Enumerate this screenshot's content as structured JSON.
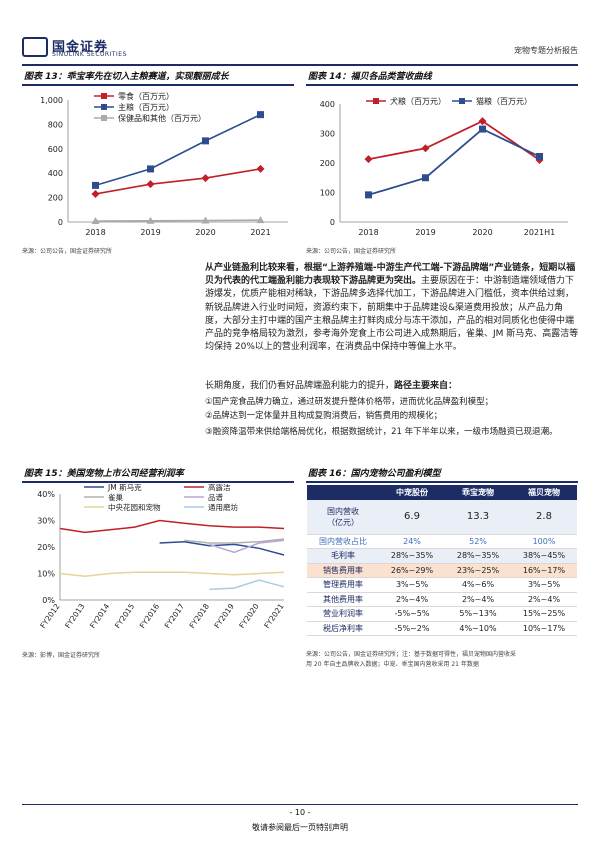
{
  "header": {
    "logo_cn": "国金证券",
    "logo_en": "SINOLINK SECURITIES",
    "report_type": "宠物专题分析报告"
  },
  "fig13": {
    "title": "图表 13：乖宝率先在切入主粮赛道，实现靓丽成长",
    "source": "来源：公司公告，国金证券研究所",
    "chart_data": {
      "type": "line",
      "x": [
        "2018",
        "2019",
        "2020",
        "2021"
      ],
      "ylim": [
        0,
        1000
      ],
      "yticks": [
        "0",
        "200",
        "400",
        "600",
        "800",
        "1,000"
      ],
      "series": [
        {
          "name": "零食（百万元）",
          "values": [
            230,
            310,
            360,
            435
          ],
          "color": "#c0202a"
        },
        {
          "name": "主粮（百万元）",
          "values": [
            300,
            435,
            665,
            880
          ],
          "color": "#2e4d8f"
        },
        {
          "name": "保健品和其他（百万元）",
          "values": [
            8,
            10,
            12,
            15
          ],
          "color": "#aaaaaa"
        }
      ]
    }
  },
  "fig14": {
    "title": "图表 14：福贝各品类营收曲线",
    "source": "来源：公司公告，国金证券研究所",
    "chart_data": {
      "type": "line",
      "x": [
        "2018",
        "2019",
        "2020",
        "2021H1"
      ],
      "ylim": [
        0,
        400
      ],
      "yticks": [
        "0",
        "100",
        "200",
        "300",
        "400"
      ],
      "series": [
        {
          "name": "犬粮（百万元）",
          "values": [
            213,
            250,
            342,
            210
          ],
          "color": "#c0202a"
        },
        {
          "name": "猫粮（百万元）",
          "values": [
            92,
            150,
            315,
            222
          ],
          "color": "#2e4d8f"
        }
      ]
    }
  },
  "text": {
    "p1_bold": "从产业链盈利比较来看，根据“上游养殖端-中游生产代工端-下游品牌端”产业链条，短期以福贝为代表的代工端盈利能力表现较下游品牌更为突出。",
    "p1_rest": "主要原因在于：中游制造端领域借力下游爆发，优质产能相对稀缺，下游品牌多选择代加工，下游品牌进入门槛低，资本供给过剩，新锐品牌进入行业时间短，资源约束下，前期集中于品牌建设&渠道费用投放；从产品力角度，大部分主打中端的国产主粮品牌主打鲜肉成分与冻干添加，产品的相对同质化也使得中端产品的竞争格局较为激烈，参考海外宠食上市公司进入成熟期后，雀巢、JM 斯马克、高露洁等均保持 20%以上的营业利润率，在消费品中保持中等偏上水平。",
    "p2_normal": "长期角度，我们仍看好品牌端盈利能力的提升，",
    "p2_bold": "路径主要来自：",
    "b1": "①国产宠食品牌力确立，通过研发提升整体价格带，进而优化品牌盈利模型；",
    "b2": "②品牌达到一定体量并且构成复购消费后，销售费用的规模化；",
    "b3": "③融资降温带来供给端格局优化，根据数据统计，21 年下半年以来，一级市场融资已现退潮。"
  },
  "fig15": {
    "title": "图表 15：美国宠物上市公司经营利润率",
    "source": "来源：彭博，国金证券研究所",
    "chart_data": {
      "type": "line",
      "x": [
        "FY2012",
        "FY2013",
        "FY2014",
        "FY2015",
        "FY2016",
        "FY2017",
        "FY2018",
        "FY2019",
        "FY2020",
        "FY2021"
      ],
      "ylim": [
        0,
        40
      ],
      "yticks": [
        "0%",
        "10%",
        "20%",
        "30%",
        "40%"
      ],
      "series": [
        {
          "name": "JM 斯马克",
          "values": [
            null,
            null,
            null,
            null,
            21.5,
            22,
            20.5,
            21,
            19.5,
            17
          ],
          "color": "#2e4d8f"
        },
        {
          "name": "高露洁",
          "values": [
            27,
            25.5,
            26.5,
            27.5,
            30,
            29,
            28,
            27.5,
            27.5,
            27
          ],
          "color": "#c0202a"
        },
        {
          "name": "雀巢",
          "values": [
            null,
            null,
            null,
            null,
            null,
            22.5,
            21.5,
            21.5,
            22,
            23
          ],
          "color": "#b0b0b0"
        },
        {
          "name": "品谱",
          "values": [
            null,
            null,
            null,
            null,
            null,
            null,
            21,
            18,
            21.5,
            22.5
          ],
          "color": "#b7a6d4"
        },
        {
          "name": "中央花园和宠物",
          "values": [
            10,
            9,
            10,
            10.5,
            10.5,
            10.5,
            10,
            9.5,
            10,
            10.5
          ],
          "color": "#e6d49a"
        },
        {
          "name": "通用磨坊",
          "values": [
            null,
            null,
            null,
            null,
            null,
            null,
            4,
            4.5,
            7.5,
            5
          ],
          "color": "#a7cde4"
        }
      ]
    }
  },
  "fig16": {
    "title": "图表 16：国内宠物公司盈利模型",
    "source_line1": "来源：公司公告，国金证券研究所；注：基于数据可得性，福贝宠物国内营收采",
    "source_line2": "用 20 年自主品牌收入数据；中宠、乖宝国内营收采用 21 年数据",
    "columns": [
      "",
      "中宠股份",
      "乖宝宠物",
      "福贝宠物"
    ],
    "rows": [
      {
        "label": "国内营收\n（亿元）",
        "values": [
          "6.9",
          "13.3",
          "2.8"
        ]
      },
      {
        "label": "国内营收占比",
        "values": [
          "24%",
          "52%",
          "100%"
        ]
      },
      {
        "label": "毛利率",
        "values": [
          "28%~35%",
          "28%~35%",
          "38%~45%"
        ]
      },
      {
        "label": "销售费用率",
        "values": [
          "26%~29%",
          "23%~25%",
          "16%~17%"
        ]
      },
      {
        "label": "管理费用率",
        "values": [
          "3%~5%",
          "4%~6%",
          "3%~5%"
        ]
      },
      {
        "label": "其他费用率",
        "values": [
          "2%~4%",
          "2%~4%",
          "2%~4%"
        ]
      },
      {
        "label": "营业利润率",
        "values": [
          "-5%~5%",
          "5%~13%",
          "15%~25%"
        ]
      },
      {
        "label": "税后净利率",
        "values": [
          "-5%~2%",
          "4%~10%",
          "10%~17%"
        ]
      }
    ]
  },
  "footer": {
    "page_no": "- 10 -",
    "disclaimer": "敬请参阅最后一页特别声明"
  }
}
